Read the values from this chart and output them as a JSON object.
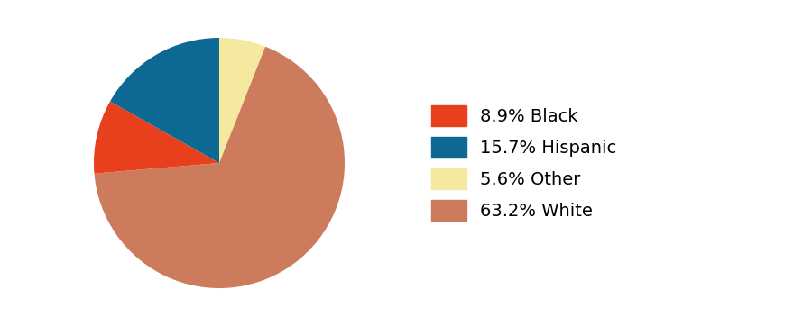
{
  "labels": [
    "8.9% Black",
    "15.7% Hispanic",
    "5.6% Other",
    "63.2% White"
  ],
  "values": [
    8.9,
    15.7,
    5.6,
    63.2
  ],
  "colors": [
    "#e8401c",
    "#0d6894",
    "#f5e9a0",
    "#cc7b5c"
  ],
  "startangle": 90,
  "legend_fontsize": 14,
  "pie_order": [
    2,
    3,
    0,
    1
  ],
  "background_color": "none"
}
